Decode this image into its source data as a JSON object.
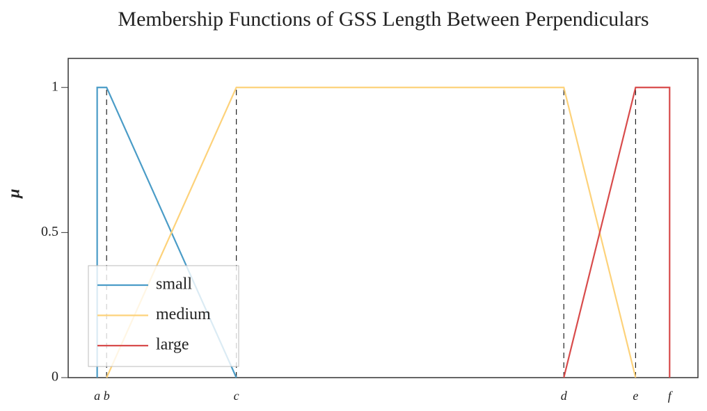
{
  "chart_data": {
    "type": "line",
    "title": "Membership Functions of GSS Length Between Perpendiculars",
    "ylabel": "μ",
    "xlim": [
      0,
      100
    ],
    "ylim": [
      0,
      1.1
    ],
    "yticks": [
      0,
      0.5,
      1
    ],
    "xticks": [
      {
        "value": 4.6,
        "label": "a"
      },
      {
        "value": 6.1,
        "label": "b"
      },
      {
        "value": 26.7,
        "label": "c"
      },
      {
        "value": 78.7,
        "label": "d"
      },
      {
        "value": 90.1,
        "label": "e"
      },
      {
        "value": 95.5,
        "label": "f"
      }
    ],
    "legend": "lower left",
    "series": [
      {
        "name": "small",
        "color": "#4a9cc7",
        "x": [
          4.6,
          4.6,
          6.1,
          26.7
        ],
        "values": [
          0,
          1,
          1,
          0
        ]
      },
      {
        "name": "medium",
        "color": "#fdd27a",
        "x": [
          6.1,
          26.7,
          78.7,
          90.1
        ],
        "values": [
          0,
          1,
          1,
          0
        ]
      },
      {
        "name": "large",
        "color": "#d84b4b",
        "x": [
          78.7,
          90.1,
          95.5,
          95.5
        ],
        "values": [
          0,
          1,
          1,
          0
        ]
      }
    ]
  }
}
